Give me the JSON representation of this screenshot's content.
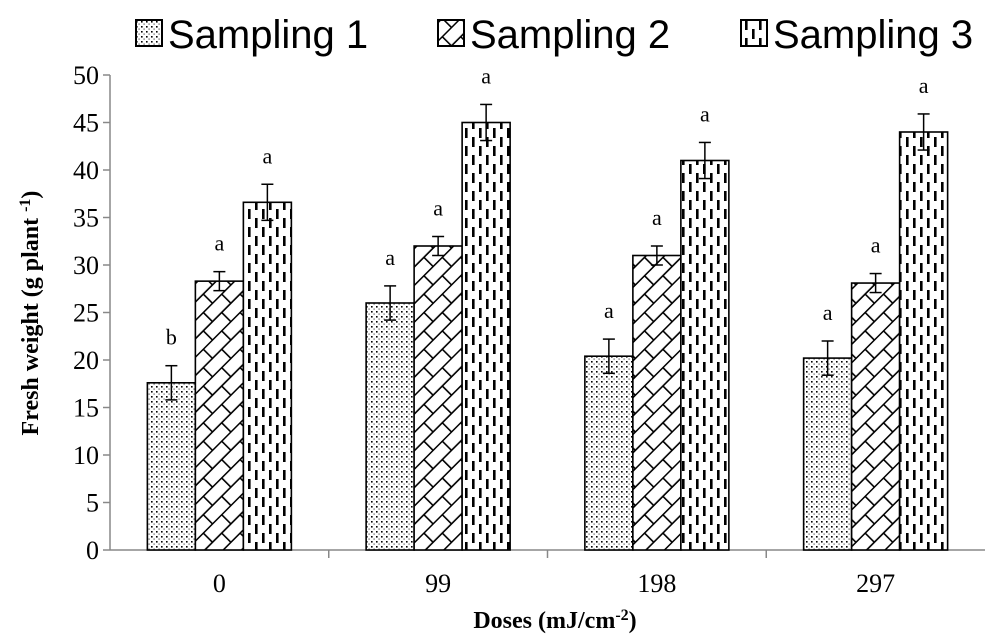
{
  "chart_data": {
    "type": "bar",
    "title": "",
    "xlabel": "Doses (mJ/cm",
    "xlabel_sup": "-2",
    "xlabel_end": ")",
    "ylabel": "Fresh weight (g plant ",
    "ylabel_sup": "-1",
    "ylabel_end": ")",
    "categories": [
      "0",
      "99",
      "198",
      "297"
    ],
    "ylim": [
      0,
      50
    ],
    "yticks": [
      0,
      5,
      10,
      15,
      20,
      25,
      30,
      35,
      40,
      45,
      50
    ],
    "legend_position": "top",
    "grid": false,
    "series": [
      {
        "name": "Sampling 1",
        "pattern": "dots",
        "values": [
          17.6,
          26.0,
          20.4,
          20.2
        ],
        "errors": [
          1.8,
          1.8,
          1.8,
          1.8
        ],
        "letters": [
          "b",
          "a",
          "a",
          "a"
        ]
      },
      {
        "name": "Sampling 2",
        "pattern": "diagonal-brick",
        "values": [
          28.3,
          32.0,
          31.0,
          28.1
        ],
        "errors": [
          1.0,
          1.0,
          1.0,
          1.0
        ],
        "letters": [
          "a",
          "a",
          "a",
          "a"
        ]
      },
      {
        "name": "Sampling 3",
        "pattern": "dashed-vertical",
        "values": [
          36.6,
          45.0,
          41.0,
          44.0
        ],
        "errors": [
          1.9,
          1.9,
          1.9,
          1.9
        ],
        "letters": [
          "a",
          "a",
          "a",
          "a"
        ]
      }
    ]
  }
}
